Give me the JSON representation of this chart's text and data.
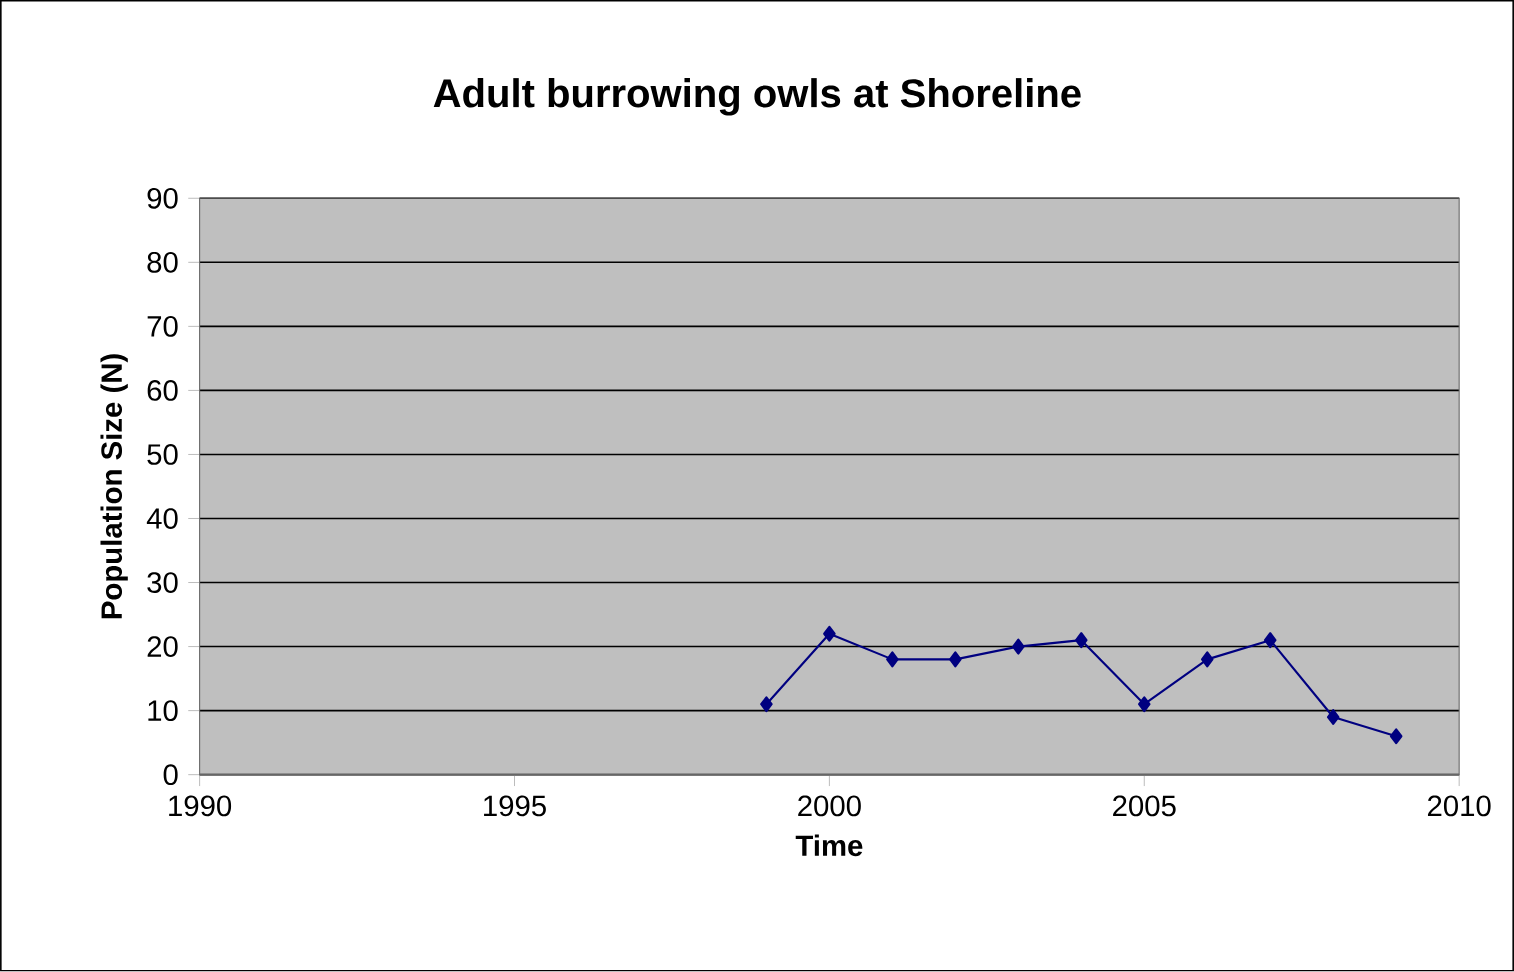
{
  "chart_data": {
    "type": "line",
    "title": "Adult burrowing owls at Shoreline",
    "xlabel": "Time",
    "ylabel": "Population Size (N)",
    "x": [
      1999,
      2000,
      2001,
      2002,
      2003,
      2004,
      2005,
      2006,
      2007,
      2008,
      2009
    ],
    "series": [
      {
        "color": "#000080",
        "values": [
          11,
          22,
          18,
          18,
          20,
          21,
          11,
          18,
          21,
          9,
          6
        ]
      }
    ],
    "xlim": [
      1990,
      2010
    ],
    "ylim": [
      0,
      90
    ],
    "xticks": [
      1990,
      1995,
      2000,
      2005,
      2010
    ],
    "yticks": [
      0,
      10,
      20,
      30,
      40,
      50,
      60,
      70,
      80,
      90
    ],
    "grid": "y",
    "marker": "diamond",
    "line_style": "solid"
  }
}
